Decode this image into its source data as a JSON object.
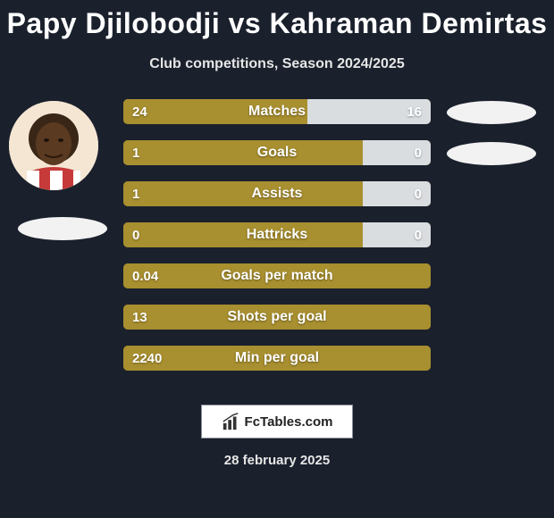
{
  "title": "Papy Djilobodji vs Kahraman Demirtas",
  "subtitle": "Club competitions, Season 2024/2025",
  "date": "28 february 2025",
  "logo_text": "FcTables.com",
  "colors": {
    "bg": "#1a202c",
    "bar_left": "#a88f2f",
    "bar_right": "#d9dde0",
    "shadow": "#f2f2f2",
    "text": "#ffffff"
  },
  "stats": [
    {
      "label": "Matches",
      "left_val": "24",
      "right_val": "16",
      "left_pct": 60,
      "right_pct": 40
    },
    {
      "label": "Goals",
      "left_val": "1",
      "right_val": "0",
      "left_pct": 78,
      "right_pct": 22
    },
    {
      "label": "Assists",
      "left_val": "1",
      "right_val": "0",
      "left_pct": 78,
      "right_pct": 22
    },
    {
      "label": "Hattricks",
      "left_val": "0",
      "right_val": "0",
      "left_pct": 78,
      "right_pct": 22
    },
    {
      "label": "Goals per match",
      "left_val": "0.04",
      "right_val": "",
      "left_pct": 100,
      "right_pct": 0
    },
    {
      "label": "Shots per goal",
      "left_val": "13",
      "right_val": "",
      "left_pct": 100,
      "right_pct": 0
    },
    {
      "label": "Min per goal",
      "left_val": "2240",
      "right_val": "",
      "left_pct": 100,
      "right_pct": 0
    }
  ]
}
